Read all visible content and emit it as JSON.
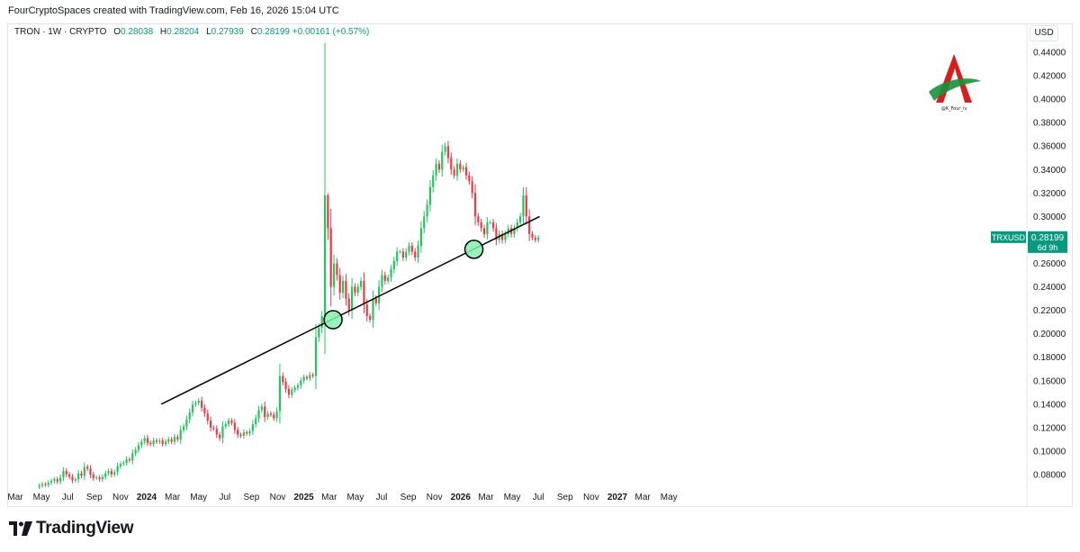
{
  "header": {
    "text": "FourCryptoSpaces created with TradingView.com, Feb 16, 2026 15:04 UTC"
  },
  "legend": {
    "symbol": "TRON · 1W · CRYPTO",
    "o_label": "O",
    "o": "0.28038",
    "h_label": "H",
    "h": "0.28204",
    "l_label": "L",
    "l": "0.27939",
    "c_label": "C",
    "c": "0.28199",
    "change": "+0.00161 (+0.57%)"
  },
  "currency": "USD",
  "price_tag": {
    "symbol": "TRXUSD",
    "price": "0.28199",
    "countdown": "6d 9h"
  },
  "brand": {
    "text": "@K_Four_iv"
  },
  "footer": {
    "brand": "TradingView"
  },
  "colors": {
    "up": "#089981",
    "down": "#f23645",
    "up_light": "#22c55e",
    "trendline": "#000000",
    "highlight": "#86efac"
  },
  "chart_data": {
    "type": "candlestick",
    "title": "TRON · 1W · CRYPTO",
    "ylabel": "USD",
    "ylim": [
      0.07,
      0.45
    ],
    "yticks": [
      "0.44000",
      "0.42000",
      "0.40000",
      "0.38000",
      "0.36000",
      "0.34000",
      "0.32000",
      "0.30000",
      "0.28000",
      "0.26000",
      "0.24000",
      "0.22000",
      "0.20000",
      "0.18000",
      "0.16000",
      "0.14000",
      "0.12000",
      "0.10000",
      "0.08000"
    ],
    "xticks": [
      "Mar",
      "May",
      "Jul",
      "Sep",
      "Nov",
      "2024",
      "Mar",
      "May",
      "Jul",
      "Sep",
      "Nov",
      "2025",
      "Mar",
      "May",
      "Jul",
      "Sep",
      "Nov",
      "2026",
      "Mar",
      "May",
      "Jul",
      "Sep",
      "Nov",
      "2027",
      "Mar",
      "May"
    ],
    "x_start": "2023-03-01",
    "period_days": 7,
    "first_candle_week": 8,
    "closes": [
      0.0705,
      0.0718,
      0.0712,
      0.073,
      0.0745,
      0.076,
      0.074,
      0.0775,
      0.083,
      0.08,
      0.078,
      0.075,
      0.076,
      0.081,
      0.079,
      0.0865,
      0.085,
      0.08,
      0.077,
      0.0775,
      0.076,
      0.078,
      0.081,
      0.083,
      0.08,
      0.082,
      0.087,
      0.089,
      0.09,
      0.093,
      0.092,
      0.098,
      0.101,
      0.105,
      0.108,
      0.111,
      0.107,
      0.106,
      0.109,
      0.108,
      0.109,
      0.106,
      0.108,
      0.11,
      0.108,
      0.112,
      0.11,
      0.118,
      0.121,
      0.127,
      0.133,
      0.1395,
      0.141,
      0.143,
      0.137,
      0.132,
      0.126,
      0.12,
      0.119,
      0.114,
      0.111,
      0.121,
      0.123,
      0.126,
      0.124,
      0.118,
      0.114,
      0.113,
      0.116,
      0.115,
      0.117,
      0.123,
      0.128,
      0.135,
      0.138,
      0.129,
      0.132,
      0.131,
      0.128,
      0.134,
      0.164,
      0.159,
      0.153,
      0.148,
      0.152,
      0.154,
      0.156,
      0.16,
      0.163,
      0.162,
      0.165,
      0.164,
      0.197,
      0.205,
      0.215,
      0.318,
      0.29,
      0.24,
      0.26,
      0.25,
      0.235,
      0.245,
      0.23,
      0.22,
      0.24,
      0.235,
      0.24,
      0.245,
      0.225,
      0.215,
      0.212,
      0.23,
      0.226,
      0.24,
      0.25,
      0.245,
      0.248,
      0.255,
      0.262,
      0.27,
      0.27,
      0.265,
      0.27,
      0.275,
      0.27,
      0.265,
      0.275,
      0.29,
      0.3,
      0.31,
      0.325,
      0.335,
      0.345,
      0.34,
      0.355,
      0.36,
      0.35,
      0.34,
      0.335,
      0.345,
      0.34,
      0.342,
      0.335,
      0.33,
      0.32,
      0.3,
      0.295,
      0.29,
      0.285,
      0.295,
      0.295,
      0.29,
      0.28,
      0.285,
      0.28,
      0.285,
      0.29,
      0.285,
      0.29,
      0.295,
      0.3,
      0.318,
      0.3,
      0.285,
      0.282,
      0.28,
      0.28199
    ]
  },
  "trendline": {
    "from": {
      "date": "2024-02-04",
      "price": 0.14
    },
    "to": {
      "date": "2026-07-04",
      "price": 0.3
    }
  },
  "highlights": [
    {
      "date": "2025-03-10",
      "price": 0.212
    },
    {
      "date": "2026-02-01",
      "price": 0.272
    }
  ]
}
